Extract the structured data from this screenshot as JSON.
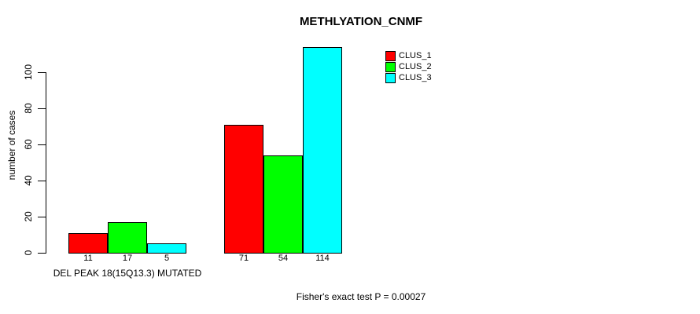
{
  "chart_data": {
    "type": "bar",
    "title": "METHLYATION_CNMF",
    "ylabel": "number of cases",
    "xlabel": "DEL PEAK 18(15Q13.3) MUTATED",
    "caption": "Fisher's exact test P = 0.00027",
    "ylim": [
      0,
      117
    ],
    "yticks": [
      0,
      20,
      40,
      60,
      80,
      100
    ],
    "grid": false,
    "legend_position": "top-right",
    "groups": 2,
    "series": [
      {
        "name": "CLUS_1",
        "color": "#FF0000",
        "values": [
          11,
          71
        ]
      },
      {
        "name": "CLUS_2",
        "color": "#00FF00",
        "values": [
          17,
          54
        ]
      },
      {
        "name": "CLUS_3",
        "color": "#00FFFF",
        "values": [
          5,
          114
        ]
      }
    ],
    "bar_value_labels": [
      [
        11,
        17,
        5
      ],
      [
        71,
        54,
        114
      ]
    ],
    "colors": {
      "foreground": "#000000",
      "background": "#FFFFFF"
    }
  }
}
